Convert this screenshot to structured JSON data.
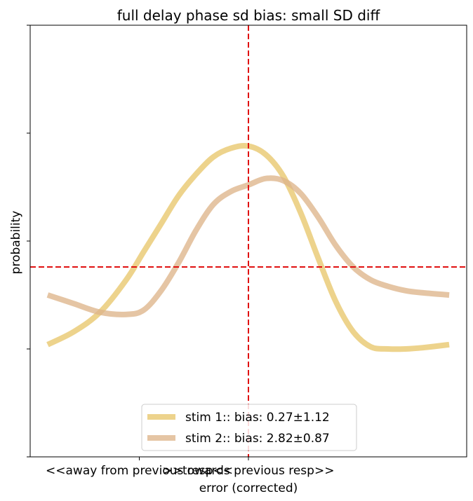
{
  "chart_data": {
    "type": "line",
    "title": "full delay phase sd bias: small SD diff",
    "xlabel": "error (corrected)",
    "ylabel": "probability",
    "x_tick_labels": [
      {
        "x": -50,
        "label": "<<away from previous resp<<"
      },
      {
        "x": 0,
        "label": ">>towards previous resp>>"
      }
    ],
    "xlim": [
      -100,
      100
    ],
    "ylim": [
      0,
      100
    ],
    "y_ticks": [
      0,
      25,
      50,
      75,
      100
    ],
    "y_tick_labels_shown": false,
    "reference_lines": {
      "vertical_x": 0,
      "horizontal_y": 44,
      "color": "#e01010",
      "style": "dashed"
    },
    "legend_position": "lower center",
    "grid": false,
    "series": [
      {
        "name": "stim 1:: bias: 0.27±1.12",
        "color": "#e8c66c",
        "x": [
          -92,
          -80,
          -68,
          -56,
          -48,
          -40,
          -32,
          -24,
          -16,
          -8,
          0,
          8,
          16,
          24,
          32,
          40,
          48,
          56,
          64,
          72,
          80,
          92
        ],
        "y": [
          26,
          29,
          33.5,
          41,
          47.5,
          54,
          60.5,
          65.5,
          69.5,
          71.5,
          72,
          70,
          65,
          56.5,
          46,
          36,
          29,
          25.5,
          25,
          25,
          25.3,
          26
        ]
      },
      {
        "name": "stim 2:: bias: 2.82±0.87",
        "color": "#deb58a",
        "x": [
          -92,
          -80,
          -68,
          -56,
          -48,
          -40,
          -32,
          -24,
          -16,
          -8,
          0,
          8,
          16,
          24,
          32,
          40,
          48,
          56,
          64,
          72,
          80,
          92
        ],
        "y": [
          37.5,
          35.5,
          33.5,
          33,
          34,
          38.5,
          45,
          52.5,
          58.5,
          61.5,
          63,
          64.5,
          64,
          61,
          55.5,
          49,
          44,
          41,
          39.5,
          38.5,
          38,
          37.5
        ]
      }
    ]
  }
}
